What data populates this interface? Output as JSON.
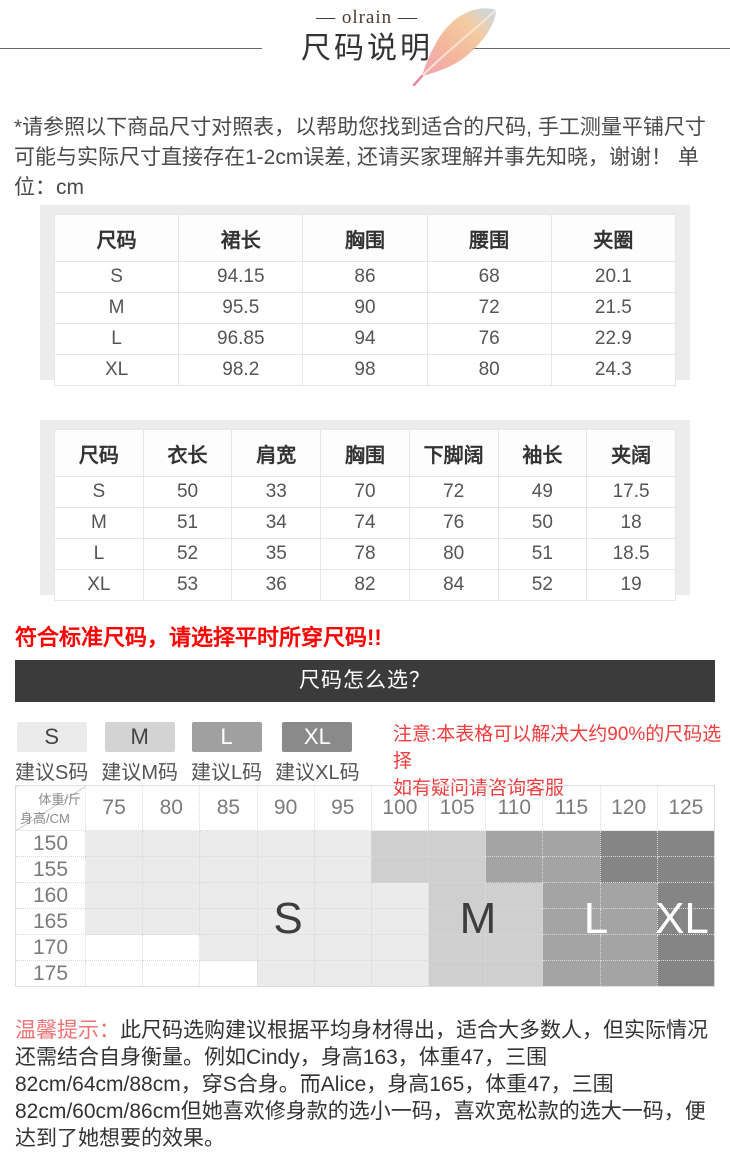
{
  "header": {
    "brand": "— olrain —",
    "title": "尺码说明"
  },
  "intro": "*请参照以下商品尺寸对照表，以帮助您找到适合的尺码, 手工测量平铺尺寸可能与实际尺寸直接存在1-2cm误差, 还请买家理解并事先知晓，谢谢！ 单位：cm",
  "table1": {
    "headers": [
      "尺码",
      "裙长",
      "胸围",
      "腰围",
      "夹圈"
    ],
    "rows": [
      [
        "S",
        "94.15",
        "86",
        "68",
        "20.1"
      ],
      [
        "M",
        "95.5",
        "90",
        "72",
        "21.5"
      ],
      [
        "L",
        "96.85",
        "94",
        "76",
        "22.9"
      ],
      [
        "XL",
        "98.2",
        "98",
        "80",
        "24.3"
      ]
    ]
  },
  "table2": {
    "headers": [
      "尺码",
      "衣长",
      "肩宽",
      "胸围",
      "下脚阔",
      "袖长",
      "夹阔"
    ],
    "rows": [
      [
        "S",
        "50",
        "33",
        "70",
        "72",
        "49",
        "17.5"
      ],
      [
        "M",
        "51",
        "34",
        "74",
        "76",
        "50",
        "18"
      ],
      [
        "L",
        "52",
        "35",
        "78",
        "80",
        "51",
        "18.5"
      ],
      [
        "XL",
        "53",
        "36",
        "82",
        "84",
        "52",
        "19"
      ]
    ]
  },
  "fit_note": "符合标准尺码，请选择平时所穿尺码!!",
  "section_bar": "尺码怎么选？",
  "size_chips": [
    {
      "size": "S",
      "label": "建议S码",
      "bg": "#ebebeb",
      "fg": "#444444"
    },
    {
      "size": "M",
      "label": "建议M码",
      "bg": "#d3d3d3",
      "fg": "#444444"
    },
    {
      "size": "L",
      "label": "建议L码",
      "bg": "#a0a0a0",
      "fg": "#ffffff"
    },
    {
      "size": "XL",
      "label": "建议XL码",
      "bg": "#8a8a8a",
      "fg": "#ffffff"
    }
  ],
  "attention": {
    "line1": "注意:本表格可以解决大约90%的尺码选择",
    "line2": "如有疑问请咨询客服"
  },
  "matrix": {
    "corner_top": "体重/斤",
    "corner_bottom": "身高/CM",
    "weights": [
      "75",
      "80",
      "85",
      "90",
      "95",
      "100",
      "105",
      "110",
      "115",
      "120",
      "125"
    ],
    "heights": [
      "150",
      "155",
      "160",
      "165",
      "170",
      "175"
    ],
    "cells": [
      [
        1,
        1,
        1,
        1,
        1,
        2,
        2,
        3,
        3,
        4,
        4
      ],
      [
        1,
        1,
        1,
        1,
        1,
        2,
        2,
        3,
        3,
        4,
        4
      ],
      [
        1,
        1,
        1,
        1,
        1,
        1,
        2,
        2,
        3,
        3,
        4
      ],
      [
        1,
        1,
        1,
        1,
        1,
        1,
        2,
        2,
        3,
        3,
        4
      ],
      [
        0,
        0,
        1,
        1,
        1,
        1,
        2,
        2,
        3,
        3,
        4
      ],
      [
        0,
        0,
        0,
        1,
        1,
        1,
        2,
        2,
        3,
        3,
        4
      ]
    ],
    "shades": {
      "0": "#ffffff",
      "1": "#ebebeb",
      "2": "#cfcfcf",
      "3": "#a4a4a4",
      "4": "#858585"
    },
    "labels": [
      {
        "text": "S",
        "color": "#3d3d3d"
      },
      {
        "text": "M",
        "color": "#3d3d3d"
      },
      {
        "text": "L",
        "color": "#ffffff"
      },
      {
        "text": "XL",
        "color": "#ffffff"
      }
    ]
  },
  "tips": {
    "label": "温馨提示：",
    "body": "此尺码选购建议根据平均身材得出，适合大多数人，但实际情况还需结合自身衡量。例如Cindy，身高163，体重47，三围82cm/64cm/88cm，穿S合身。而Alice，身高165，体重47，三围82cm/60cm/86cm但她喜欢修身款的选小一码，喜欢宽松款的选大一码，便达到了她想要的效果。"
  },
  "colors": {
    "accent_red": "#fe0101",
    "note_red": "#f03c3c",
    "tips_label_red": "#ee7374",
    "bar_bg": "#3b3b3b"
  }
}
